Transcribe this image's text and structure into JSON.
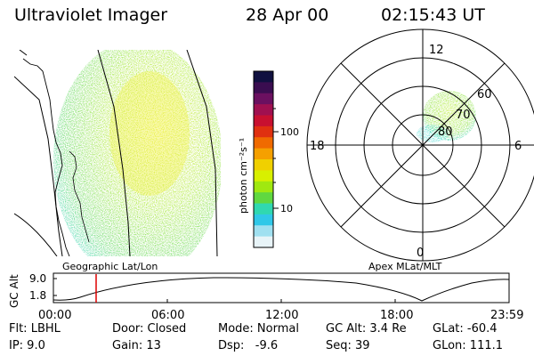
{
  "header": {
    "title": "Ultraviolet Imager",
    "date": "28 Apr 00",
    "time": "02:15:43 UT"
  },
  "colorbar": {
    "unit_label": "photon cm⁻²s⁻¹",
    "ticks": [
      "100",
      "10"
    ],
    "colors": [
      "#101040",
      "#3a0d50",
      "#6b1060",
      "#a01050",
      "#c81030",
      "#e03010",
      "#f06a00",
      "#f5a000",
      "#f0d000",
      "#d8f000",
      "#a0e810",
      "#60d840",
      "#30d8b0",
      "#30c8e8",
      "#a0e0f0",
      "#e8f4f8"
    ]
  },
  "geo_panel": {
    "label": "Geographic Lat/Lon",
    "aurora_color": "#b8ee30"
  },
  "polar_panel": {
    "label": "Apex MLat/MLT",
    "mlt_labels": [
      "12",
      "18",
      "6",
      "0"
    ],
    "lat_labels": [
      "60",
      "70",
      "80"
    ]
  },
  "altitude_plot": {
    "ylabel": "GC Alt",
    "ytick_labels": [
      "9.0",
      "1.8"
    ],
    "xtick_labels": [
      "00:00",
      "06:00",
      "12:00",
      "18:00",
      "23:59"
    ],
    "current_time_marker_color": "#dd0000"
  },
  "info": {
    "flt": "Flt: LBHL",
    "ip": "IP: 9.0",
    "door": "Door: Closed",
    "gain": "Gain: 13",
    "mode": "Mode: Normal",
    "dsp": "Dsp:   -9.6",
    "gcalt": "GC Alt: 3.4 Re",
    "seq": "Seq: 39",
    "glat": "GLat: -60.4",
    "glon": "GLon: 111.1"
  }
}
